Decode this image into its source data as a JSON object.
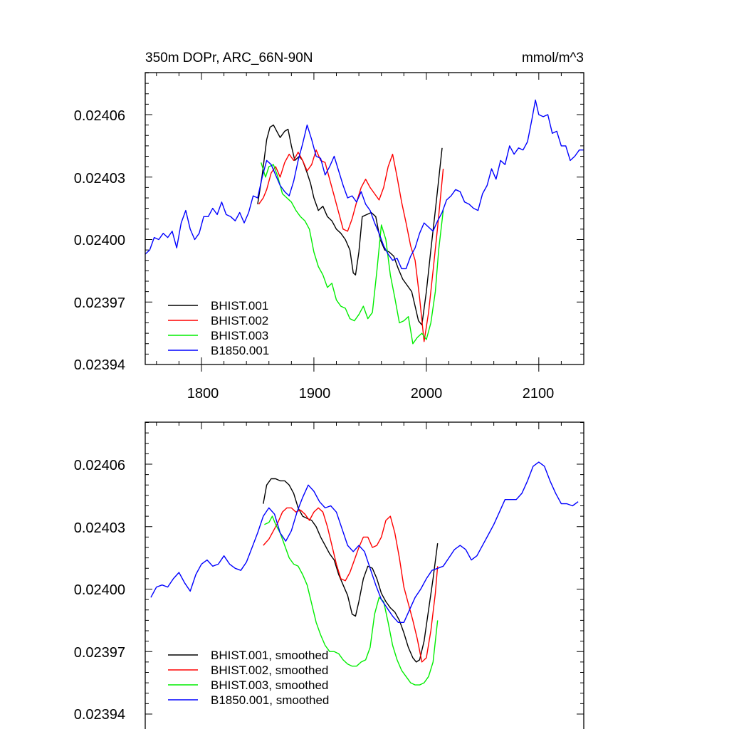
{
  "colors": {
    "BHIST.001": "#000000",
    "BHIST.002": "#ff0000",
    "BHIST.003": "#00ee00",
    "B1850.001": "#0000ff"
  },
  "chart_data": [
    {
      "type": "line",
      "title_left": "350m DOPr, ARC_66N-90N",
      "title_right": "mmol/m^3",
      "xlim": [
        1750,
        2140
      ],
      "ylim": [
        0.02394,
        0.02408
      ],
      "yticks": [
        0.02394,
        0.02397,
        0.024,
        0.02403,
        0.02406
      ],
      "ytick_labels": [
        "0.02394",
        "0.02397",
        "0.02400",
        "0.02403",
        "0.02406"
      ],
      "xticks": [
        1800,
        1900,
        2000,
        2100
      ],
      "xtick_labels": [
        "1800",
        "1900",
        "2000",
        "2100"
      ],
      "legend_position": "bottom-left",
      "series": [
        {
          "name": "BHIST.001",
          "color": "#000000",
          "x": [
            1850,
            1854,
            1858,
            1861,
            1864,
            1867,
            1870,
            1874,
            1877,
            1880,
            1883,
            1887,
            1890,
            1894,
            1897,
            1900,
            1904,
            1908,
            1912,
            1916,
            1920,
            1924,
            1928,
            1932,
            1935,
            1937,
            1940,
            1943,
            1947,
            1951,
            1955,
            1959,
            1963,
            1967,
            1971,
            1975,
            1979,
            1983,
            1987,
            1990,
            1993,
            1996,
            2000,
            2004,
            2008,
            2014
          ],
          "y": [
            0.024017,
            0.024031,
            0.024048,
            0.024054,
            0.024055,
            0.024052,
            0.024049,
            0.024052,
            0.024053,
            0.024045,
            0.024038,
            0.02404,
            0.024038,
            0.024032,
            0.024027,
            0.02402,
            0.024014,
            0.024016,
            0.024011,
            0.024009,
            0.024005,
            0.024003,
            0.024,
            0.023995,
            0.023984,
            0.023983,
            0.023994,
            0.024011,
            0.024012,
            0.024013,
            0.024011,
            0.024,
            0.023995,
            0.023994,
            0.023992,
            0.023986,
            0.023981,
            0.023978,
            0.023975,
            0.023968,
            0.023961,
            0.023959,
            0.023975,
            0.023995,
            0.024014,
            0.024044
          ]
        },
        {
          "name": "BHIST.002",
          "color": "#ff0000",
          "x": [
            1851,
            1855,
            1858,
            1862,
            1866,
            1870,
            1874,
            1878,
            1882,
            1886,
            1890,
            1894,
            1898,
            1902,
            1906,
            1910,
            1914,
            1918,
            1922,
            1926,
            1930,
            1934,
            1938,
            1942,
            1946,
            1950,
            1954,
            1958,
            1962,
            1966,
            1970,
            1974,
            1978,
            1982,
            1986,
            1990,
            1994,
            1998,
            2002,
            2006,
            2010,
            2015
          ],
          "y": [
            0.024017,
            0.02402,
            0.024024,
            0.024032,
            0.024035,
            0.02403,
            0.024037,
            0.024041,
            0.024038,
            0.024042,
            0.024038,
            0.024033,
            0.024036,
            0.024043,
            0.024038,
            0.024037,
            0.024029,
            0.024021,
            0.024013,
            0.024005,
            0.024004,
            0.02401,
            0.024018,
            0.024025,
            0.024029,
            0.024025,
            0.024022,
            0.024019,
            0.024025,
            0.024035,
            0.024041,
            0.02403,
            0.024018,
            0.024008,
            0.023997,
            0.02399,
            0.023972,
            0.023951,
            0.023965,
            0.023985,
            0.024006,
            0.024034
          ]
        },
        {
          "name": "BHIST.003",
          "color": "#00ee00",
          "x": [
            1853,
            1857,
            1860,
            1864,
            1868,
            1872,
            1876,
            1880,
            1884,
            1888,
            1892,
            1896,
            1900,
            1904,
            1908,
            1912,
            1916,
            1920,
            1924,
            1928,
            1932,
            1936,
            1940,
            1944,
            1948,
            1952,
            1956,
            1960,
            1964,
            1968,
            1972,
            1976,
            1980,
            1984,
            1988,
            1992,
            1996,
            2000,
            2004,
            2008,
            2011,
            2015
          ],
          "y": [
            0.024037,
            0.02403,
            0.024035,
            0.024036,
            0.02403,
            0.024022,
            0.02402,
            0.024018,
            0.024014,
            0.024011,
            0.024009,
            0.024005,
            0.023994,
            0.023987,
            0.023983,
            0.023977,
            0.023979,
            0.023971,
            0.023968,
            0.023967,
            0.023962,
            0.023961,
            0.023964,
            0.023968,
            0.023962,
            0.023965,
            0.023985,
            0.024007,
            0.024,
            0.023983,
            0.023972,
            0.02396,
            0.023961,
            0.023963,
            0.02395,
            0.023953,
            0.023955,
            0.023952,
            0.02396,
            0.023975,
            0.023995,
            0.024014
          ]
        },
        {
          "name": "B1850.001",
          "color": "#0000ff",
          "x": [
            1750,
            1754,
            1758,
            1762,
            1766,
            1770,
            1774,
            1778,
            1782,
            1786,
            1790,
            1794,
            1798,
            1802,
            1806,
            1810,
            1814,
            1818,
            1822,
            1826,
            1830,
            1834,
            1838,
            1842,
            1846,
            1850,
            1854,
            1858,
            1862,
            1866,
            1870,
            1874,
            1878,
            1882,
            1886,
            1890,
            1894,
            1898,
            1902,
            1906,
            1910,
            1914,
            1918,
            1922,
            1926,
            1930,
            1934,
            1938,
            1942,
            1946,
            1950,
            1954,
            1958,
            1962,
            1966,
            1970,
            1974,
            1978,
            1982,
            1986,
            1990,
            1994,
            1998,
            2002,
            2006,
            2010,
            2014,
            2018,
            2022,
            2026,
            2030,
            2034,
            2038,
            2042,
            2046,
            2050,
            2054,
            2058,
            2062,
            2066,
            2070,
            2074,
            2078,
            2082,
            2086,
            2090,
            2094,
            2097,
            2100,
            2104,
            2108,
            2112,
            2116,
            2120,
            2124,
            2128,
            2132,
            2136,
            2140
          ],
          "y": [
            0.023993,
            0.023995,
            0.024001,
            0.024,
            0.024003,
            0.024001,
            0.024004,
            0.023996,
            0.024008,
            0.024014,
            0.024005,
            0.024,
            0.024003,
            0.024011,
            0.024011,
            0.024015,
            0.024012,
            0.024018,
            0.024012,
            0.024011,
            0.024009,
            0.024013,
            0.024008,
            0.024013,
            0.024021,
            0.02402,
            0.02403,
            0.024038,
            0.024036,
            0.024031,
            0.024026,
            0.024023,
            0.024021,
            0.024028,
            0.024038,
            0.024046,
            0.024055,
            0.024048,
            0.02404,
            0.024039,
            0.024031,
            0.024035,
            0.02404,
            0.024033,
            0.024026,
            0.02402,
            0.024021,
            0.024018,
            0.024023,
            0.024017,
            0.024014,
            0.024008,
            0.024003,
            0.023997,
            0.023993,
            0.02399,
            0.023991,
            0.023986,
            0.023986,
            0.023992,
            0.023996,
            0.024003,
            0.024008,
            0.024006,
            0.024004,
            0.024009,
            0.024013,
            0.024019,
            0.024021,
            0.024024,
            0.024023,
            0.024018,
            0.024017,
            0.024015,
            0.024014,
            0.024022,
            0.024026,
            0.024034,
            0.024029,
            0.024038,
            0.024036,
            0.024045,
            0.024041,
            0.024044,
            0.024043,
            0.024047,
            0.024058,
            0.024067,
            0.02406,
            0.024059,
            0.02406,
            0.024051,
            0.024052,
            0.024045,
            0.024045,
            0.024038,
            0.02404,
            0.024043,
            0.024043
          ]
        }
      ]
    },
    {
      "type": "line",
      "xlim": [
        1750,
        2140
      ],
      "ylim": [
        0.02394,
        0.02408
      ],
      "yticks": [
        0.02394,
        0.02397,
        0.024,
        0.02403,
        0.02406
      ],
      "ytick_labels": [
        "0.02394",
        "0.02397",
        "0.02400",
        "0.02403",
        "0.02406"
      ],
      "xticks": [
        1800,
        1900,
        2000,
        2100
      ],
      "legend_position": "bottom-left",
      "series": [
        {
          "name": "BHIST.001, smoothed",
          "color": "#000000",
          "x": [
            1855,
            1858,
            1862,
            1866,
            1870,
            1874,
            1878,
            1882,
            1886,
            1890,
            1894,
            1898,
            1902,
            1906,
            1910,
            1914,
            1918,
            1922,
            1926,
            1930,
            1934,
            1937,
            1940,
            1944,
            1948,
            1952,
            1956,
            1960,
            1964,
            1968,
            1972,
            1976,
            1980,
            1984,
            1988,
            1991,
            1994,
            1998,
            2002,
            2006,
            2010
          ],
          "y": [
            0.024041,
            0.02405,
            0.024053,
            0.024053,
            0.024052,
            0.024052,
            0.02405,
            0.024046,
            0.024039,
            0.024035,
            0.024034,
            0.024033,
            0.02403,
            0.024025,
            0.024021,
            0.024017,
            0.024014,
            0.024007,
            0.024002,
            0.023997,
            0.023988,
            0.023987,
            0.023994,
            0.024005,
            0.024011,
            0.02401,
            0.024005,
            0.023998,
            0.023994,
            0.023991,
            0.023989,
            0.023985,
            0.023979,
            0.023972,
            0.023967,
            0.023965,
            0.023966,
            0.023975,
            0.02399,
            0.024005,
            0.024022
          ]
        },
        {
          "name": "BHIST.002, smoothed",
          "color": "#ff0000",
          "x": [
            1855,
            1860,
            1864,
            1868,
            1872,
            1876,
            1880,
            1884,
            1888,
            1892,
            1896,
            1900,
            1904,
            1908,
            1912,
            1916,
            1920,
            1924,
            1928,
            1932,
            1936,
            1940,
            1944,
            1948,
            1952,
            1956,
            1960,
            1964,
            1968,
            1972,
            1976,
            1980,
            1984,
            1988,
            1992,
            1996,
            2000,
            2004,
            2008,
            2010
          ],
          "y": [
            0.024021,
            0.024024,
            0.024028,
            0.024032,
            0.024037,
            0.024039,
            0.024039,
            0.024037,
            0.024038,
            0.024036,
            0.024033,
            0.024037,
            0.024039,
            0.024037,
            0.02403,
            0.024021,
            0.024012,
            0.024005,
            0.024004,
            0.024008,
            0.024014,
            0.02402,
            0.024025,
            0.024025,
            0.02402,
            0.024021,
            0.024025,
            0.024033,
            0.024035,
            0.024027,
            0.024015,
            0.024001,
            0.023993,
            0.023985,
            0.023976,
            0.023965,
            0.023967,
            0.02398,
            0.023998,
            0.024011
          ]
        },
        {
          "name": "BHIST.003, smoothed",
          "color": "#00ee00",
          "x": [
            1856,
            1860,
            1863,
            1866,
            1870,
            1874,
            1878,
            1882,
            1886,
            1890,
            1894,
            1898,
            1902,
            1906,
            1910,
            1914,
            1918,
            1922,
            1926,
            1930,
            1934,
            1938,
            1942,
            1946,
            1950,
            1954,
            1958,
            1962,
            1966,
            1970,
            1974,
            1978,
            1982,
            1986,
            1990,
            1994,
            1998,
            2002,
            2006,
            2010
          ],
          "y": [
            0.024031,
            0.024032,
            0.024035,
            0.024031,
            0.024027,
            0.024021,
            0.024015,
            0.024012,
            0.024011,
            0.024007,
            0.024002,
            0.023993,
            0.023984,
            0.023978,
            0.023973,
            0.02397,
            0.02397,
            0.023969,
            0.023966,
            0.023964,
            0.023963,
            0.023963,
            0.023965,
            0.023966,
            0.023972,
            0.023988,
            0.023996,
            0.023994,
            0.023984,
            0.023973,
            0.023966,
            0.023961,
            0.023958,
            0.023955,
            0.023954,
            0.023954,
            0.023955,
            0.023958,
            0.023965,
            0.023985
          ]
        },
        {
          "name": "B1850.001, smoothed",
          "color": "#0000ff",
          "x": [
            1755,
            1760,
            1765,
            1770,
            1775,
            1780,
            1785,
            1790,
            1795,
            1800,
            1805,
            1810,
            1815,
            1820,
            1825,
            1830,
            1835,
            1840,
            1845,
            1850,
            1855,
            1860,
            1865,
            1870,
            1875,
            1880,
            1885,
            1890,
            1895,
            1900,
            1905,
            1910,
            1915,
            1920,
            1925,
            1930,
            1935,
            1940,
            1945,
            1950,
            1955,
            1960,
            1965,
            1970,
            1975,
            1980,
            1985,
            1990,
            1995,
            2000,
            2005,
            2010,
            2015,
            2020,
            2025,
            2030,
            2035,
            2040,
            2045,
            2050,
            2055,
            2060,
            2065,
            2070,
            2075,
            2080,
            2085,
            2090,
            2095,
            2100,
            2105,
            2110,
            2115,
            2120,
            2125,
            2130,
            2135
          ],
          "y": [
            0.023996,
            0.024001,
            0.024002,
            0.024001,
            0.024005,
            0.024008,
            0.024003,
            0.023999,
            0.024007,
            0.024012,
            0.024014,
            0.024011,
            0.024012,
            0.024016,
            0.024012,
            0.02401,
            0.024009,
            0.024013,
            0.02402,
            0.024027,
            0.024035,
            0.024039,
            0.024036,
            0.024027,
            0.024023,
            0.024028,
            0.024037,
            0.024044,
            0.02405,
            0.024047,
            0.024042,
            0.024039,
            0.02404,
            0.024037,
            0.024029,
            0.024021,
            0.024018,
            0.024021,
            0.024018,
            0.02401,
            0.024002,
            0.023995,
            0.023991,
            0.023987,
            0.023984,
            0.023984,
            0.02399,
            0.023996,
            0.024,
            0.024005,
            0.024009,
            0.02401,
            0.024011,
            0.024015,
            0.024019,
            0.024021,
            0.024019,
            0.024014,
            0.024016,
            0.024021,
            0.024026,
            0.024031,
            0.024037,
            0.024043,
            0.024043,
            0.024043,
            0.024046,
            0.024052,
            0.024059,
            0.024061,
            0.024059,
            0.024052,
            0.024046,
            0.024041,
            0.024041,
            0.02404,
            0.024042
          ]
        }
      ]
    }
  ]
}
